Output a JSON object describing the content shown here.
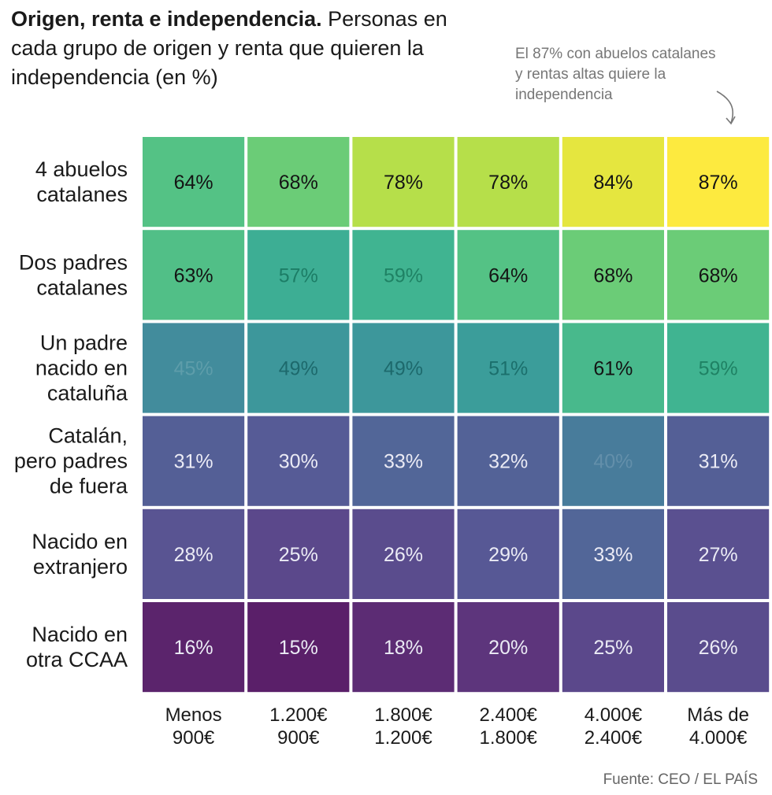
{
  "title": {
    "bold": "Origen, renta e independencia.",
    "rest": "Personas en cada grupo de origen y renta que quieren la independencia (en %)"
  },
  "annotation": {
    "text": "El 87% con abuelos catalanes y rentas altas quiere la independencia"
  },
  "source": "Fuente: CEO / EL PAÍS",
  "chart_data": {
    "type": "heatmap",
    "title": "Origen, renta e independencia.",
    "xlabel": "",
    "ylabel": "",
    "unit": "%",
    "color_scale": "viridis",
    "color_domain": [
      15,
      87
    ],
    "columns": [
      [
        "Menos",
        "900€"
      ],
      [
        "1.200€",
        "900€"
      ],
      [
        "1.800€",
        "1.200€"
      ],
      [
        "2.400€",
        "1.800€"
      ],
      [
        "4.000€",
        "2.400€"
      ],
      [
        "Más de",
        "4.000€"
      ]
    ],
    "rows": [
      {
        "label": [
          "4 abuelos",
          "catalanes"
        ],
        "values": [
          64,
          68,
          78,
          78,
          84,
          87
        ]
      },
      {
        "label": [
          "Dos padres",
          "catalanes"
        ],
        "values": [
          63,
          57,
          59,
          64,
          68,
          68
        ]
      },
      {
        "label": [
          "Un padre",
          "nacido en",
          "cataluña"
        ],
        "values": [
          45,
          49,
          49,
          51,
          61,
          59
        ]
      },
      {
        "label": [
          "Catalán,",
          "pero padres",
          "de fuera"
        ],
        "values": [
          31,
          30,
          33,
          32,
          40,
          31
        ]
      },
      {
        "label": [
          "Nacido en",
          "extranjero"
        ],
        "values": [
          28,
          25,
          26,
          29,
          33,
          27
        ]
      },
      {
        "label": [
          "Nacido en",
          "otra CCAA"
        ],
        "values": [
          16,
          15,
          18,
          20,
          25,
          26
        ]
      }
    ]
  }
}
